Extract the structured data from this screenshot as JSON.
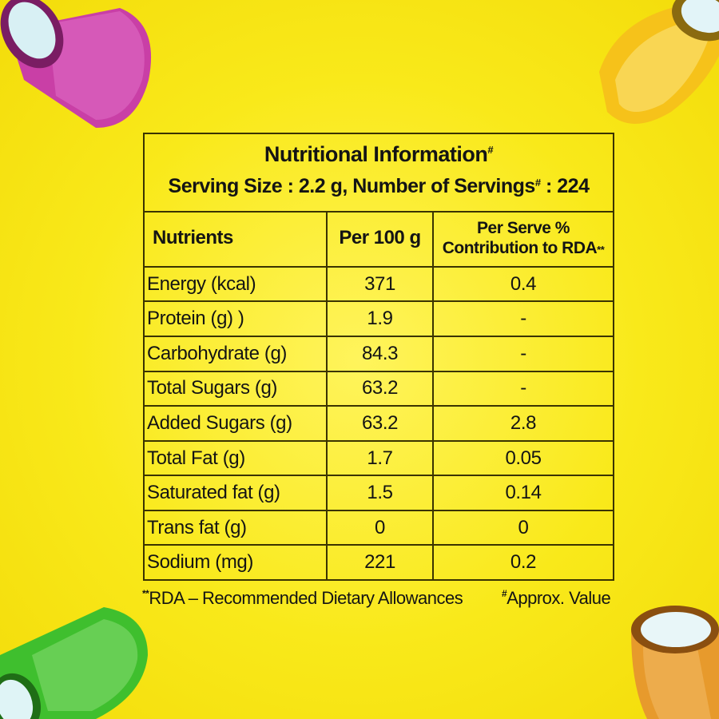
{
  "title": {
    "line1": "Nutritional Information",
    "mark1": "#",
    "line2a": "Serving Size : 2.2 g, Number of Servings",
    "mark2": "#",
    "line2b": " : 224"
  },
  "table": {
    "headers": {
      "nutrients": "Nutrients",
      "per100": "Per 100 g",
      "perServeLine1": "Per Serve %",
      "perServeLine2": "Contribution to RDA",
      "perServeMark": "**"
    },
    "rows": [
      {
        "nutrient": "Energy (kcal)",
        "per100": "371",
        "rda": "0.4"
      },
      {
        "nutrient": "Protein (g) )",
        "per100": "1.9",
        "rda": "-"
      },
      {
        "nutrient": "Carbohydrate (g)",
        "per100": "84.3",
        "rda": "-"
      },
      {
        "nutrient": "Total Sugars (g)",
        "per100": "63.2",
        "rda": "-"
      },
      {
        "nutrient": "Added Sugars (g)",
        "per100": "63.2",
        "rda": "2.8"
      },
      {
        "nutrient": "Total Fat (g)",
        "per100": "1.7",
        "rda": "0.05"
      },
      {
        "nutrient": "Saturated fat (g)",
        "per100": "1.5",
        "rda": "0.14"
      },
      {
        "nutrient": "Trans fat (g)",
        "per100": "0",
        "rda": "0"
      },
      {
        "nutrient": "Sodium (mg)",
        "per100": "221",
        "rda": "0.2"
      }
    ]
  },
  "footnotes": {
    "leftMark": "**",
    "left": "RDA – Recommended Dietary Allowances",
    "rightMark": "#",
    "right": "Approx. Value"
  },
  "colors": {
    "background": "#f9e91a",
    "border": "#3a3300",
    "candyPink": "#c93fa6",
    "candyYellow": "#f6c21a",
    "candyGreen": "#3fbf2e",
    "candyOrange": "#e79a2c"
  }
}
